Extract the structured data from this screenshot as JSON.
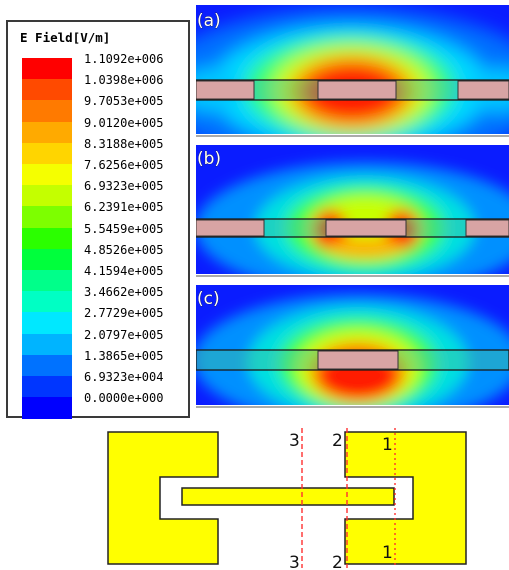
{
  "legend": {
    "title": "E Field[V/m]",
    "entries": [
      {
        "label": "1.1092e+006",
        "color": "#ff0000"
      },
      {
        "label": "1.0398e+006",
        "color": "#ff4a00"
      },
      {
        "label": "9.7053e+005",
        "color": "#ff7a00"
      },
      {
        "label": "9.0120e+005",
        "color": "#ffaa00"
      },
      {
        "label": "8.3188e+005",
        "color": "#ffd500"
      },
      {
        "label": "7.6256e+005",
        "color": "#f5ff00"
      },
      {
        "label": "6.9323e+005",
        "color": "#c4ff00"
      },
      {
        "label": "6.2391e+005",
        "color": "#7dff00"
      },
      {
        "label": "5.5459e+005",
        "color": "#2bff00"
      },
      {
        "label": "4.8526e+005",
        "color": "#00ff3c"
      },
      {
        "label": "4.1594e+005",
        "color": "#00ff8a"
      },
      {
        "label": "3.4662e+005",
        "color": "#00ffc4"
      },
      {
        "label": "2.7729e+005",
        "color": "#00e8ff"
      },
      {
        "label": "2.0797e+005",
        "color": "#00b4ff"
      },
      {
        "label": "1.3865e+005",
        "color": "#0072ff"
      },
      {
        "label": "6.9323e+004",
        "color": "#0036ff"
      },
      {
        "label": "0.0000e+000",
        "color": "#0000ff"
      }
    ]
  },
  "panels": [
    {
      "label": "(a)"
    },
    {
      "label": "(b)"
    },
    {
      "label": "(c)"
    }
  ],
  "cut_lines": {
    "top": [
      "3",
      "2",
      "1"
    ],
    "bottom": [
      "3",
      "2",
      "1"
    ]
  },
  "colors": {
    "field_low": "#0000ff",
    "field_high": "#ff0000",
    "metal_strip": "#d9a0a0",
    "resonator_fill": "#ffff00",
    "cut_line": "#ff3030"
  }
}
